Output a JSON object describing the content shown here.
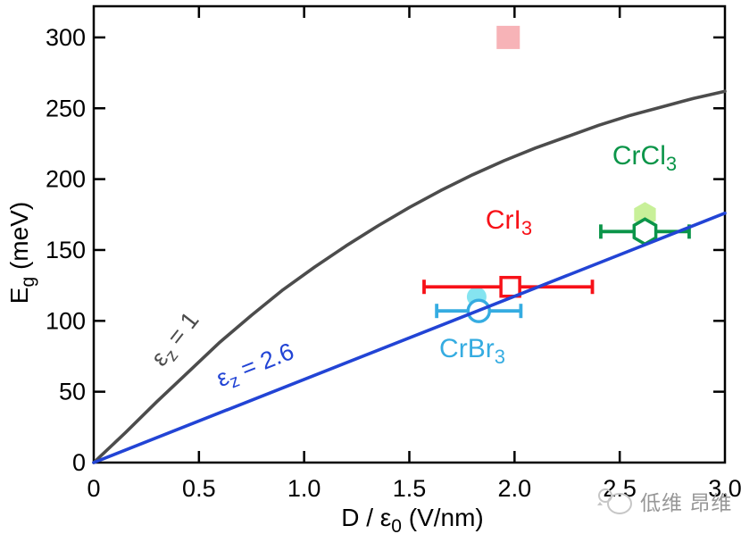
{
  "watermark": {
    "text": "低维 昂维"
  },
  "axes": {
    "x_label_pre": "D / ε",
    "x_label_sub": "0",
    "x_label_post": " (V/nm)",
    "y_label_pre": "E",
    "y_label_sub": "g",
    "y_label_post": " (meV)"
  },
  "annotations": {
    "ez1": {
      "pre": "ε",
      "sub": "z",
      "post": " = 1",
      "color": "#4c4c4c"
    },
    "ez26": {
      "pre": "ε",
      "sub": "z",
      "post": " = 2.6",
      "color": "#2244d5"
    },
    "cri3": {
      "pre": "CrI",
      "sub": "3",
      "color": "#f71118"
    },
    "crbr3": {
      "pre": "CrBr",
      "sub": "3",
      "color": "#35ace1"
    },
    "crcl3": {
      "pre": "CrCl",
      "sub": "3",
      "color": "#0b9549"
    }
  },
  "chart_data": {
    "type": "scatter",
    "title": "",
    "xlabel": "D / ε0 (V/nm)",
    "ylabel": "Eg (meV)",
    "xlim": [
      0,
      3.0
    ],
    "ylim": [
      0,
      322
    ],
    "grid": false,
    "x_ticks": [
      0,
      0.5,
      1.0,
      1.5,
      2.0,
      2.5,
      3.0
    ],
    "x_tick_labels": [
      "0",
      "0.5",
      "1.0",
      "1.5",
      "2.0",
      "2.5",
      "3.0"
    ],
    "y_ticks": [
      0,
      50,
      100,
      150,
      200,
      250,
      300
    ],
    "y_tick_labels": [
      "0",
      "50",
      "100",
      "150",
      "200",
      "250",
      "300"
    ],
    "curves": [
      {
        "name": "εz = 1",
        "color": "#4c4c4c",
        "x": [
          0,
          0.15,
          0.3,
          0.45,
          0.6,
          0.75,
          0.9,
          1.05,
          1.2,
          1.35,
          1.5,
          1.65,
          1.8,
          1.95,
          2.1,
          2.25,
          2.4,
          2.55,
          2.7,
          2.85,
          3.0
        ],
        "y": [
          0,
          21,
          43,
          64,
          85,
          104,
          122,
          138,
          153,
          167,
          180,
          192,
          203,
          213,
          222,
          230,
          238,
          245,
          251,
          257,
          262
        ]
      },
      {
        "name": "εz = 2.6",
        "color": "#2244d5",
        "x": [
          0,
          3.0
        ],
        "y": [
          0,
          176
        ]
      }
    ],
    "points": [
      {
        "name": "unlabeled-filled-square",
        "marker": "filled-square",
        "color": "#f7b3b7",
        "x": 1.97,
        "y": 300
      },
      {
        "name": "crbr3-filled",
        "marker": "filled-circle",
        "color": "#85e4f0",
        "x": 1.82,
        "y": 117
      },
      {
        "name": "crcl3-filled",
        "marker": "filled-hexagon",
        "color": "#c8f099",
        "x": 2.62,
        "y": 175
      },
      {
        "name": "cri3",
        "marker": "open-square",
        "color": "#f71118",
        "x": 1.98,
        "y": 124,
        "xerr": [
          1.57,
          2.37
        ]
      },
      {
        "name": "crbr3",
        "marker": "open-circle",
        "color": "#35ace1",
        "x": 1.83,
        "y": 107,
        "xerr": [
          1.63,
          2.03
        ]
      },
      {
        "name": "crcl3",
        "marker": "open-hexagon",
        "color": "#0b9549",
        "x": 2.62,
        "y": 163,
        "xerr": [
          2.41,
          2.83
        ]
      }
    ]
  }
}
